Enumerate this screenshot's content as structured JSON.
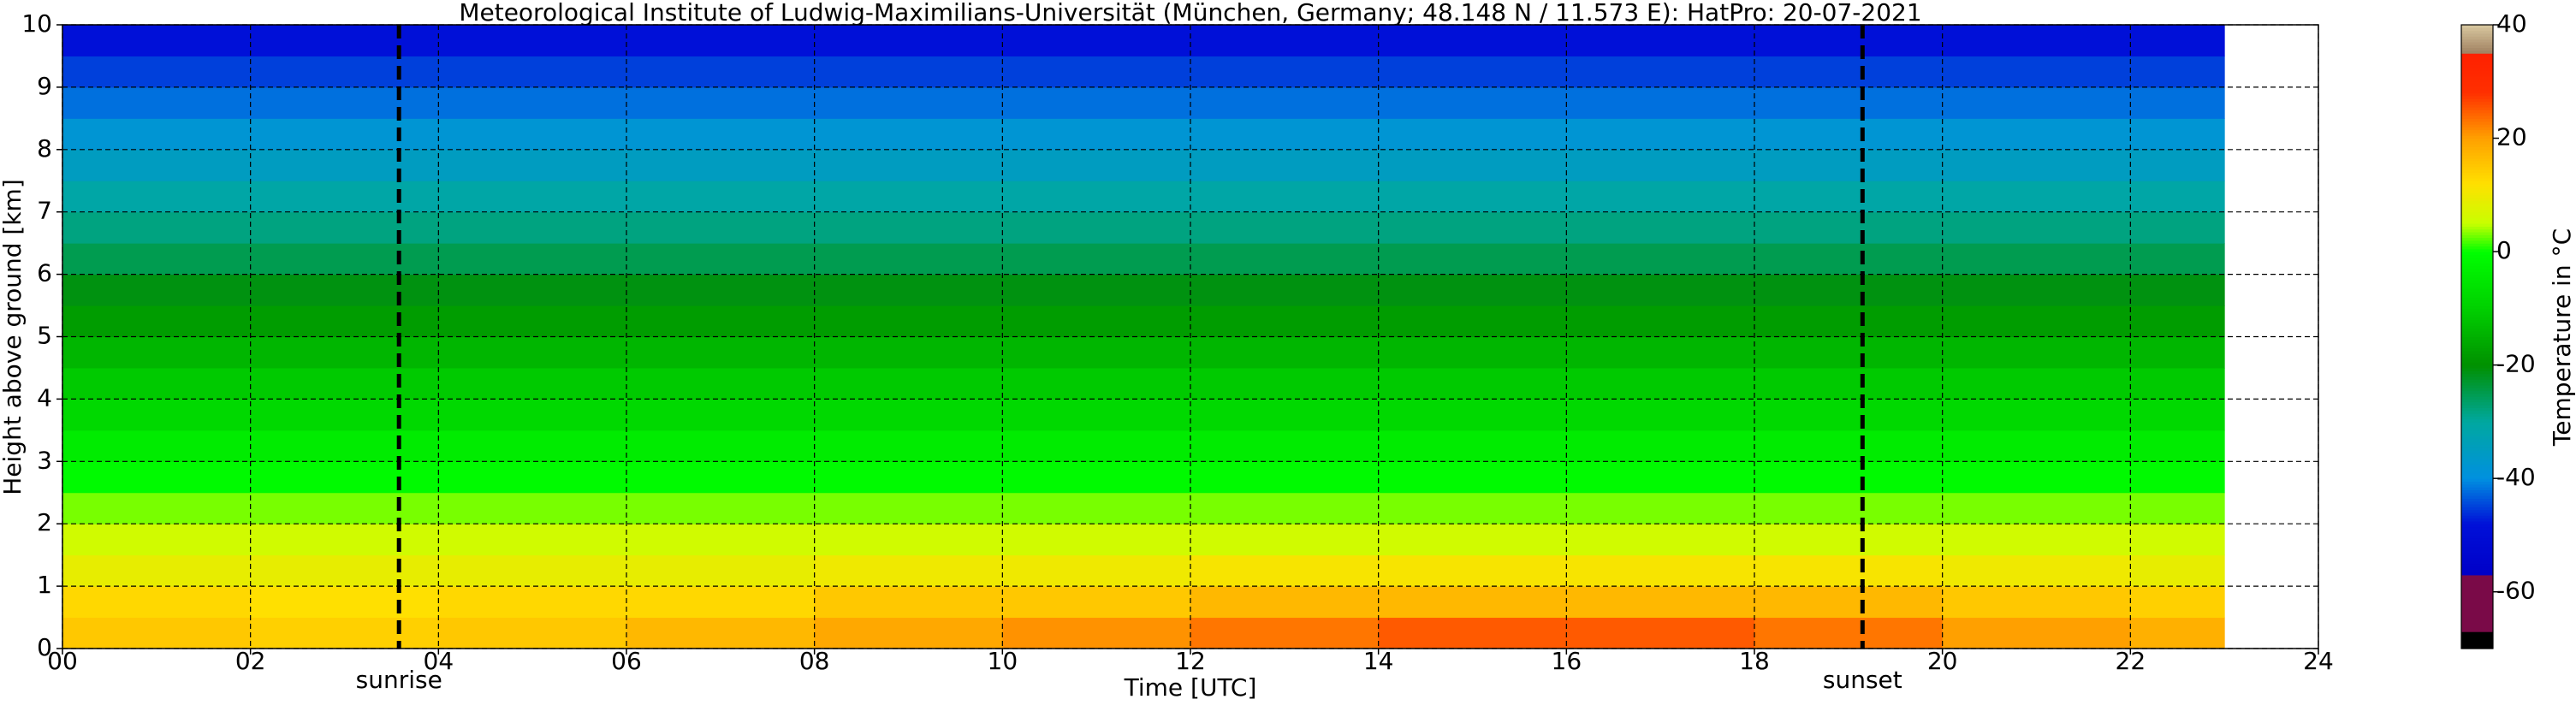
{
  "chart_data": {
    "type": "heatmap",
    "title": "Meteorological Institute of Ludwig-Maximilians-Universität (München, Germany; 48.148 N / 11.573 E):    HatPro: 20-07-2021",
    "xlabel": "Time [UTC]",
    "ylabel": "Height above ground [km]",
    "colorbar_label": "Temperature in $^\\circ$C",
    "x_edges": [
      0,
      2,
      4,
      6,
      8,
      10,
      12,
      14,
      16,
      18,
      20,
      22,
      23
    ],
    "y_edges": [
      0,
      0.5,
      1,
      1.5,
      2,
      2.5,
      3,
      3.5,
      4,
      4.5,
      5,
      5.5,
      6,
      6.5,
      7,
      7.5,
      8,
      8.5,
      9,
      9.5,
      10
    ],
    "values": [
      [
        15,
        14,
        15,
        17,
        19,
        21,
        23,
        25,
        25,
        23,
        20,
        18
      ],
      [
        13,
        12,
        13,
        13,
        15,
        15,
        17,
        17,
        17,
        17,
        15,
        14
      ],
      [
        9,
        9,
        9,
        9,
        10,
        10,
        11,
        11,
        11,
        11,
        10,
        9
      ],
      [
        6,
        6,
        6,
        6,
        6,
        6,
        6,
        6,
        6,
        6,
        6,
        6
      ],
      [
        3,
        3,
        3,
        3,
        3,
        3,
        3,
        3,
        3,
        3,
        3,
        3
      ],
      [
        -1,
        -1,
        -1,
        -1,
        -1,
        -1,
        -1,
        -1,
        -1,
        -1,
        -1,
        -1
      ],
      [
        -4,
        -4,
        -4,
        -4,
        -4,
        -4,
        -4,
        -4,
        -4,
        -4,
        -4,
        -4
      ],
      [
        -8,
        -8,
        -8,
        -8,
        -8,
        -8,
        -8,
        -8,
        -8,
        -8,
        -8,
        -8
      ],
      [
        -11,
        -11,
        -11,
        -11,
        -11,
        -11,
        -11,
        -11,
        -11,
        -11,
        -11,
        -11
      ],
      [
        -14,
        -14,
        -14,
        -14,
        -14,
        -14,
        -14,
        -14,
        -14,
        -14,
        -14,
        -14
      ],
      [
        -18,
        -18,
        -18,
        -18,
        -18,
        -18,
        -18,
        -18,
        -18,
        -18,
        -18,
        -18
      ],
      [
        -21,
        -21,
        -21,
        -21,
        -21,
        -21,
        -21,
        -21,
        -21,
        -21,
        -21,
        -21
      ],
      [
        -25,
        -25,
        -25,
        -25,
        -25,
        -25,
        -25,
        -25,
        -25,
        -25,
        -25,
        -25
      ],
      [
        -28,
        -28,
        -28,
        -28,
        -28,
        -28,
        -28,
        -28,
        -28,
        -28,
        -28,
        -28
      ],
      [
        -31,
        -31,
        -31,
        -31,
        -31,
        -31,
        -31,
        -31,
        -31,
        -31,
        -31,
        -31
      ],
      [
        -35,
        -35,
        -35,
        -35,
        -35,
        -35,
        -35,
        -35,
        -35,
        -35,
        -35,
        -35
      ],
      [
        -38,
        -38,
        -38,
        -38,
        -38,
        -38,
        -38,
        -38,
        -38,
        -38,
        -38,
        -38
      ],
      [
        -42,
        -42,
        -42,
        -42,
        -42,
        -42,
        -42,
        -42,
        -42,
        -42,
        -42,
        -42
      ],
      [
        -45,
        -45,
        -45,
        -45,
        -45,
        -45,
        -45,
        -45,
        -45,
        -45,
        -45,
        -45
      ],
      [
        -48,
        -48,
        -48,
        -48,
        -48,
        -48,
        -48,
        -48,
        -48,
        -48,
        -48,
        -48
      ]
    ],
    "xlim": [
      0,
      24
    ],
    "xticks": [
      {
        "value": 0,
        "label": "00"
      },
      {
        "value": 2,
        "label": "02"
      },
      {
        "value": 4,
        "label": "04"
      },
      {
        "value": 6,
        "label": "06"
      },
      {
        "value": 8,
        "label": "08"
      },
      10,
      12,
      14,
      16,
      18,
      20,
      22,
      24
    ],
    "ylim": [
      0,
      10
    ],
    "yticks": [
      0,
      1,
      2,
      3,
      4,
      5,
      6,
      7,
      8,
      9,
      10
    ],
    "clim": [
      -70,
      40
    ],
    "cticks": [
      -60,
      -40,
      -20,
      0,
      20,
      40
    ],
    "colormap": [
      {
        "value": -70,
        "color": "#000000"
      },
      {
        "value": -67,
        "color": "#000000"
      },
      {
        "value": -66.9,
        "color": "#7a0a48"
      },
      {
        "value": -57.1,
        "color": "#7a0a48"
      },
      {
        "value": -57,
        "color": "#0000c8"
      },
      {
        "value": -48,
        "color": "#0010d8"
      },
      {
        "value": -40,
        "color": "#0090e0"
      },
      {
        "value": -30,
        "color": "#00a8a0"
      },
      {
        "value": -20,
        "color": "#009000"
      },
      {
        "value": -10,
        "color": "#00d000"
      },
      {
        "value": 0,
        "color": "#00ff00"
      },
      {
        "value": 5,
        "color": "#c8ff00"
      },
      {
        "value": 12,
        "color": "#ffe000"
      },
      {
        "value": 20,
        "color": "#ffa000"
      },
      {
        "value": 28,
        "color": "#ff3000"
      },
      {
        "value": 34.9,
        "color": "#ff2000"
      },
      {
        "value": 35,
        "color": "#a08060"
      },
      {
        "value": 40,
        "color": "#d8c8a0"
      }
    ],
    "grid": true,
    "annotations": [
      {
        "text": "sunrise",
        "x": 3.58
      },
      {
        "text": "sunset",
        "x": 19.15
      }
    ]
  }
}
